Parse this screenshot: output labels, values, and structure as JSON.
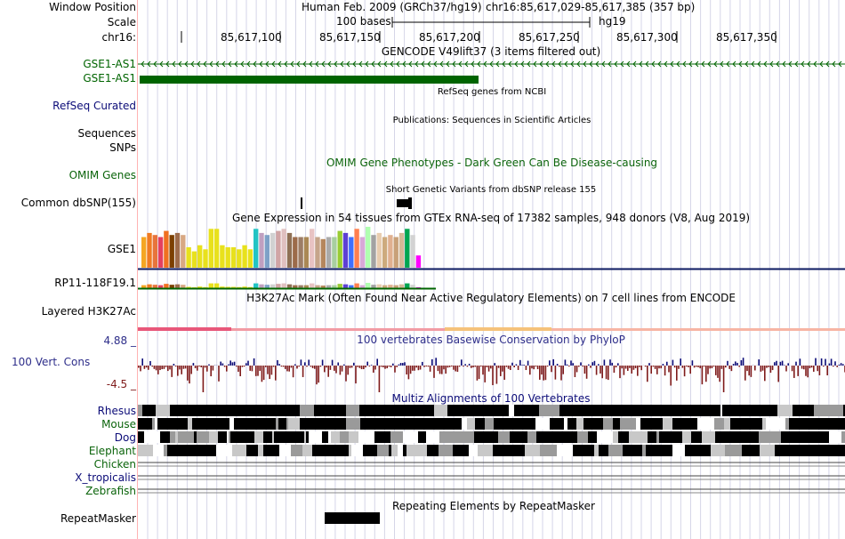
{
  "ruler": {
    "window_label": "Window Position",
    "scale_label": "Scale",
    "chrom_label": "chr16:",
    "assembly": "Human Feb. 2009 (GRCh37/hg19)",
    "position": "chr16:85,617,029-85,617,385 (357 bp)",
    "scale_text": "100 bases",
    "db": "hg19",
    "ticks": [
      "85,617,100",
      "85,617,150",
      "85,617,200",
      "85,617,250",
      "85,617,300",
      "85,617,350"
    ]
  },
  "gencode": {
    "title": "GENCODE V49lift37 (3 items filtered out)",
    "gene_labels": [
      "GSE1-AS1",
      "GSE1-AS1"
    ]
  },
  "refseq": {
    "title": "RefSeq genes from NCBI",
    "label": "RefSeq Curated"
  },
  "pubs": {
    "title": "Publications: Sequences in Scientific Articles",
    "label1": "Sequences",
    "label2": "SNPs"
  },
  "omim": {
    "title": "OMIM Gene Phenotypes - Dark Green Can Be Disease-causing",
    "label": "OMIM Genes"
  },
  "dbsnp": {
    "title": "Short Genetic Variants from dbSNP release 155",
    "label": "Common dbSNP(155)"
  },
  "gtex": {
    "title": "Gene Expression in 54 tissues from GTEx RNA-seq of 17382 samples, 948 donors (V8, Aug 2019)",
    "gene1": "GSE1",
    "gene2": "RP11-118F19.1",
    "bars": [
      {
        "v": 0.75,
        "c": "#f5a623"
      },
      {
        "v": 0.85,
        "c": "#f07b22"
      },
      {
        "v": 0.8,
        "c": "#e8743b"
      },
      {
        "v": 0.75,
        "c": "#e4405f"
      },
      {
        "v": 0.9,
        "c": "#f07020"
      },
      {
        "v": 0.8,
        "c": "#7c3f00"
      },
      {
        "v": 0.85,
        "c": "#9e6b4a"
      },
      {
        "v": 0.8,
        "c": "#d8a883"
      },
      {
        "v": 0.5,
        "c": "#e8e11c"
      },
      {
        "v": 0.4,
        "c": "#e8e11c"
      },
      {
        "v": 0.55,
        "c": "#e8e11c"
      },
      {
        "v": 0.45,
        "c": "#e8e11c"
      },
      {
        "v": 0.95,
        "c": "#e8e11c"
      },
      {
        "v": 0.95,
        "c": "#e8e11c"
      },
      {
        "v": 0.55,
        "c": "#e8e11c"
      },
      {
        "v": 0.5,
        "c": "#e8e11c"
      },
      {
        "v": 0.5,
        "c": "#e8e11c"
      },
      {
        "v": 0.45,
        "c": "#e8e11c"
      },
      {
        "v": 0.55,
        "c": "#e8e11c"
      },
      {
        "v": 0.45,
        "c": "#e8e11c"
      },
      {
        "v": 0.95,
        "c": "#22c4c4"
      },
      {
        "v": 0.85,
        "c": "#c0a0c0"
      },
      {
        "v": 0.8,
        "c": "#7ea1c7"
      },
      {
        "v": 0.85,
        "c": "#d1d1d1"
      },
      {
        "v": 0.9,
        "c": "#d1a5a5"
      },
      {
        "v": 0.95,
        "c": "#e0c0c0"
      },
      {
        "v": 0.85,
        "c": "#8f7055"
      },
      {
        "v": 0.75,
        "c": "#9c6b4a"
      },
      {
        "v": 0.75,
        "c": "#9c7d66"
      },
      {
        "v": 0.75,
        "c": "#aa8855"
      },
      {
        "v": 0.95,
        "c": "#e8c3c3"
      },
      {
        "v": 0.75,
        "c": "#c6a58a"
      },
      {
        "v": 0.7,
        "c": "#b5875d"
      },
      {
        "v": 0.75,
        "c": "#aaaaaa"
      },
      {
        "v": 0.75,
        "c": "#a8cfa0"
      },
      {
        "v": 0.9,
        "c": "#99cc33"
      },
      {
        "v": 0.85,
        "c": "#5d3fd3"
      },
      {
        "v": 0.75,
        "c": "#3f6fff"
      },
      {
        "v": 0.95,
        "c": "#ff7f50"
      },
      {
        "v": 0.75,
        "c": "#d8a8d8"
      },
      {
        "v": 1.0,
        "c": "#b0ffb0"
      },
      {
        "v": 0.8,
        "c": "#a2a2a2"
      },
      {
        "v": 0.85,
        "c": "#e8cdb0"
      },
      {
        "v": 0.75,
        "c": "#cdaa7d"
      },
      {
        "v": 0.8,
        "c": "#e0b090"
      },
      {
        "v": 0.75,
        "c": "#c8a078"
      },
      {
        "v": 0.85,
        "c": "#d4b896"
      },
      {
        "v": 0.95,
        "c": "#00a550"
      },
      {
        "v": 0.8,
        "c": "#d3d3d3"
      },
      {
        "v": 0.3,
        "c": "#ff00ff"
      }
    ]
  },
  "h3k27ac": {
    "title": "H3K27Ac Mark (Often Found Near Active Regulatory Elements) on 7 cell lines from ENCODE",
    "label": "Layered H3K27Ac"
  },
  "phylop": {
    "title": "100 vertebrates Basewise Conservation by PhyloP",
    "label": "100 Vert. Cons",
    "max": "4.88 _",
    "min": "-4.5 _"
  },
  "multiz": {
    "title": "Multiz Alignments of 100 Vertebrates",
    "species": [
      "Rhesus",
      "Mouse",
      "Dog",
      "Elephant",
      "Chicken",
      "X_tropicalis",
      "Zebrafish"
    ]
  },
  "repeatmasker": {
    "title": "Repeating Elements by RepeatMasker",
    "label": "RepeatMasker"
  },
  "colors": {
    "gencode": "#006400",
    "refseq_label": "#0c0c78",
    "omim": "#0b640b",
    "phylop_label": "#2e2e8a",
    "cons_pos": "#0c0c78",
    "cons_neg": "#7f1b1b",
    "track_line": "#0c1a60"
  }
}
